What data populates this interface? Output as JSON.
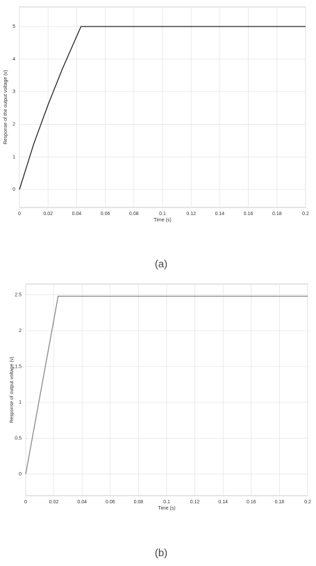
{
  "chart_data": [
    {
      "type": "line",
      "caption": "(a)",
      "x_label": "Time (s)",
      "y_label": "Response of the output voltage (v)",
      "x": [
        0,
        0.01,
        0.02,
        0.03,
        0.04,
        0.043,
        0.2
      ],
      "series": [
        {
          "color": "#222222",
          "values": [
            0,
            1.4,
            2.6,
            3.7,
            4.7,
            5,
            5
          ]
        }
      ],
      "xlim": [
        0,
        0.2
      ],
      "ylim": [
        -0.55,
        5.6
      ],
      "xticks": [
        0,
        0.02,
        0.04,
        0.06,
        0.08,
        0.1,
        0.12,
        0.14,
        0.16,
        0.18,
        0.2
      ],
      "yticks": [
        0,
        1,
        2,
        3,
        4,
        5
      ],
      "grid": true
    },
    {
      "type": "line",
      "caption": "(b)",
      "x_label": "Time (s)",
      "y_label": "Response of output voltage (v)",
      "x": [
        0,
        0.023,
        0.2
      ],
      "series": [
        {
          "color": "#888888",
          "values": [
            0,
            2.48,
            2.48
          ]
        }
      ],
      "xlim": [
        0,
        0.2
      ],
      "ylim": [
        -0.3,
        2.65
      ],
      "xticks": [
        0,
        0.02,
        0.04,
        0.06,
        0.08,
        0.1,
        0.12,
        0.14,
        0.16,
        0.18,
        0.2
      ],
      "yticks": [
        0,
        0.5,
        1,
        1.5,
        2,
        2.5
      ],
      "grid": true
    }
  ]
}
